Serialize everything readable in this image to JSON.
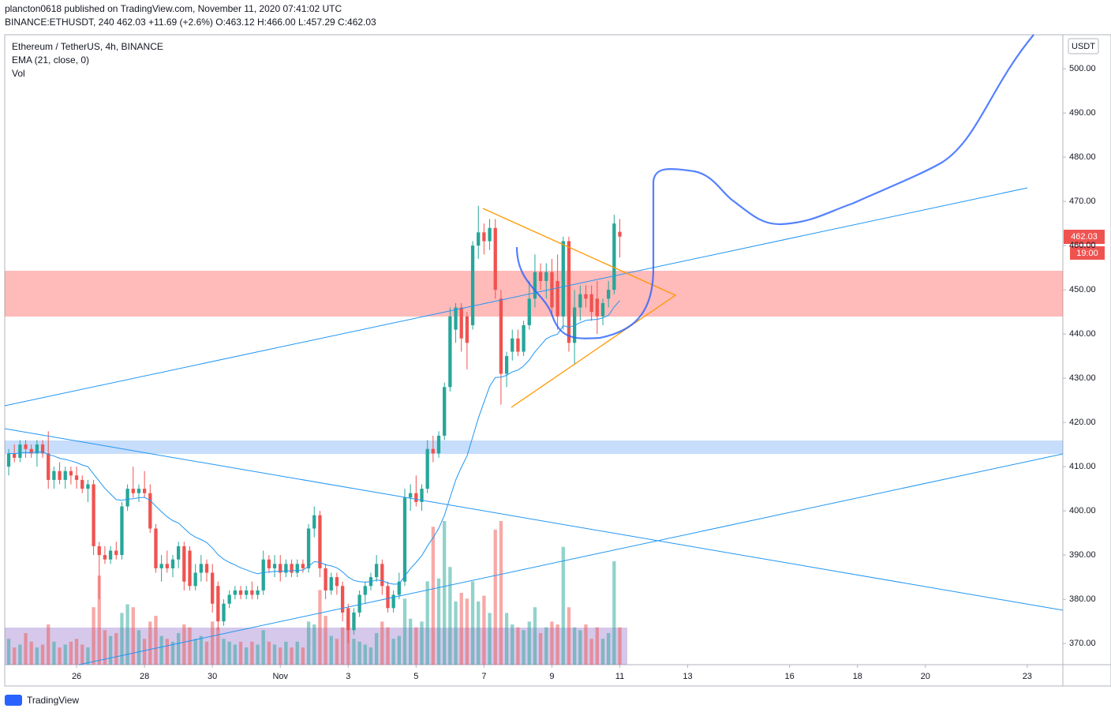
{
  "header": {
    "publisher": "plancton0618 published on TradingView.com, November 11, 2020 07:41:02 UTC",
    "symbol_line": "BINANCE:ETHUSDT, 240 462.03 +11.69 (+2.6%) O:463.12 H:466.00 L:457.29 C:462.03"
  },
  "footer": {
    "brand": "TradingView"
  },
  "chart_data": {
    "type": "candlestick",
    "title": "Ethereum / TetherUS, 4h, BINANCE",
    "indicators": [
      "EMA (21, close, 0)",
      "Vol"
    ],
    "currency": "USDT",
    "countdown": "19:00",
    "up_color": "#26a69a",
    "down_color": "#ef5350",
    "ema_color": "#2196f3",
    "xlim": [
      -0.7,
      186.3
    ],
    "xticks": [
      {
        "value": 12,
        "label": "26"
      },
      {
        "value": 24,
        "label": "28"
      },
      {
        "value": 36,
        "label": "30"
      },
      {
        "value": 48,
        "label": "Nov"
      },
      {
        "value": 60,
        "label": "3"
      },
      {
        "value": 72,
        "label": "5"
      },
      {
        "value": 84,
        "label": "7"
      },
      {
        "value": 96,
        "label": "9"
      },
      {
        "value": 108,
        "label": "11"
      },
      {
        "value": 120,
        "label": "13"
      },
      {
        "value": 138,
        "label": "16"
      },
      {
        "value": 150,
        "label": "18"
      },
      {
        "value": 162,
        "label": "20"
      },
      {
        "value": 180,
        "label": "23"
      }
    ],
    "ylim": [
      365.2,
      507.7
    ],
    "yticks": [
      {
        "value": 370,
        "label": "370.00"
      },
      {
        "value": 380,
        "label": "380.00"
      },
      {
        "value": 390,
        "label": "390.00"
      },
      {
        "value": 400,
        "label": "400.00"
      },
      {
        "value": 410,
        "label": "410.00"
      },
      {
        "value": 420,
        "label": "420.00"
      },
      {
        "value": 430,
        "label": "430.00"
      },
      {
        "value": 440,
        "label": "440.00"
      },
      {
        "value": 450,
        "label": "450.00"
      },
      {
        "value": 460,
        "label": "460.00"
      },
      {
        "value": 470,
        "label": "470.00"
      },
      {
        "value": 480,
        "label": "480.00"
      },
      {
        "value": 490,
        "label": "490.00"
      },
      {
        "value": 500,
        "label": "500.00"
      }
    ],
    "grid": false,
    "ohlc": [
      [
        410,
        414,
        408,
        413
      ],
      [
        413,
        415,
        411,
        412
      ],
      [
        412,
        416,
        411,
        415
      ],
      [
        415,
        416,
        412,
        414
      ],
      [
        414,
        415,
        412,
        413
      ],
      [
        413,
        416,
        410,
        415
      ],
      [
        415,
        416,
        412,
        413
      ],
      [
        413,
        418,
        405,
        407
      ],
      [
        407,
        410,
        405,
        409
      ],
      [
        409,
        411,
        406,
        407
      ],
      [
        407,
        410,
        405,
        409
      ],
      [
        409,
        410,
        406,
        408
      ],
      [
        408,
        410,
        405,
        407
      ],
      [
        407,
        408,
        404,
        405
      ],
      [
        405,
        407,
        402,
        406
      ],
      [
        406,
        407,
        390,
        392
      ],
      [
        392,
        393,
        380,
        390
      ],
      [
        390,
        392,
        388,
        389
      ],
      [
        389,
        392,
        388,
        391
      ],
      [
        391,
        393,
        389,
        390
      ],
      [
        390,
        402,
        389,
        401
      ],
      [
        401,
        406,
        400,
        405
      ],
      [
        405,
        410,
        403,
        404
      ],
      [
        404,
        406,
        402,
        405
      ],
      [
        405,
        409,
        403,
        404
      ],
      [
        404,
        406,
        395,
        396
      ],
      [
        396,
        397,
        386,
        387
      ],
      [
        387,
        390,
        384,
        388
      ],
      [
        388,
        391,
        386,
        387
      ],
      [
        387,
        390,
        385,
        389
      ],
      [
        389,
        393,
        387,
        392
      ],
      [
        392,
        393,
        382,
        384
      ],
      [
        391,
        392,
        382,
        383
      ],
      [
        383,
        388,
        382,
        386
      ],
      [
        386,
        390,
        384,
        388
      ],
      [
        388,
        389,
        384,
        386
      ],
      [
        386,
        388,
        377,
        379
      ],
      [
        383,
        384,
        373,
        375
      ],
      [
        375,
        380,
        374,
        379
      ],
      [
        379,
        382,
        378,
        381
      ],
      [
        381,
        383,
        380,
        382
      ],
      [
        382,
        383,
        380,
        381
      ],
      [
        381,
        383,
        380,
        382
      ],
      [
        382,
        384,
        380,
        381
      ],
      [
        381,
        383,
        380,
        382
      ],
      [
        382,
        391,
        381,
        389
      ],
      [
        389,
        390,
        386,
        387
      ],
      [
        387,
        390,
        385,
        388
      ],
      [
        388,
        390,
        384,
        386
      ],
      [
        386,
        389,
        385,
        388
      ],
      [
        388,
        389,
        385,
        386
      ],
      [
        386,
        389,
        385,
        388
      ],
      [
        388,
        389,
        386,
        387
      ],
      [
        387,
        397,
        386,
        396
      ],
      [
        396,
        401,
        394,
        399
      ],
      [
        399,
        400,
        385,
        387
      ],
      [
        387,
        388,
        380,
        382
      ],
      [
        382,
        386,
        381,
        385
      ],
      [
        385,
        386,
        381,
        383
      ],
      [
        383,
        384,
        375,
        377
      ],
      [
        378,
        379,
        370,
        373
      ],
      [
        373,
        378,
        372,
        377
      ],
      [
        377,
        382,
        376,
        381
      ],
      [
        381,
        384,
        379,
        383
      ],
      [
        383,
        386,
        382,
        385
      ],
      [
        385,
        390,
        384,
        388
      ],
      [
        388,
        389,
        381,
        383
      ],
      [
        383,
        384,
        377,
        378
      ],
      [
        378,
        382,
        377,
        381
      ],
      [
        381,
        386,
        380,
        384
      ],
      [
        384,
        405,
        383,
        403
      ],
      [
        403,
        406,
        400,
        404
      ],
      [
        404,
        408,
        401,
        402
      ],
      [
        402,
        406,
        400,
        405
      ],
      [
        405,
        416,
        404,
        414
      ],
      [
        414,
        417,
        411,
        413
      ],
      [
        413,
        418,
        412,
        417
      ],
      [
        417,
        429,
        416,
        428
      ],
      [
        428,
        446,
        427,
        444
      ],
      [
        441,
        447,
        438,
        446
      ],
      [
        446,
        447,
        436,
        439
      ],
      [
        444,
        445,
        432,
        438
      ],
      [
        442,
        461,
        441,
        460
      ],
      [
        460,
        469,
        457,
        463
      ],
      [
        463,
        465,
        458,
        461
      ],
      [
        461,
        466,
        459,
        464
      ],
      [
        464,
        466,
        448,
        450
      ],
      [
        448,
        450,
        424,
        431
      ],
      [
        431,
        436,
        428,
        435
      ],
      [
        436,
        441,
        434,
        439
      ],
      [
        439,
        441,
        435,
        436
      ],
      [
        436,
        443,
        435,
        442
      ],
      [
        442,
        452,
        441,
        448
      ],
      [
        448,
        458,
        446,
        454
      ],
      [
        454,
        456,
        450,
        452
      ],
      [
        452,
        456,
        448,
        454
      ],
      [
        454,
        457,
        444,
        446
      ],
      [
        452,
        458,
        441,
        444
      ],
      [
        444,
        462,
        441,
        461
      ],
      [
        461,
        462,
        436,
        438
      ],
      [
        438,
        450,
        433,
        446
      ],
      [
        446,
        451,
        443,
        449
      ],
      [
        449,
        451,
        446,
        448
      ],
      [
        449,
        451,
        443,
        445
      ],
      [
        448,
        452,
        440,
        444
      ],
      [
        444,
        448,
        442,
        447
      ],
      [
        448,
        452,
        446,
        450
      ],
      [
        450,
        467,
        449,
        465
      ],
      [
        463.12,
        466,
        457.29,
        462.03
      ]
    ],
    "volume_lim": [
      0,
      100
    ],
    "volume": [
      18,
      12,
      14,
      22,
      16,
      12,
      14,
      28,
      16,
      12,
      14,
      16,
      18,
      14,
      12,
      40,
      62,
      24,
      20,
      22,
      36,
      42,
      40,
      24,
      18,
      30,
      34,
      20,
      18,
      16,
      22,
      28,
      26,
      18,
      20,
      16,
      30,
      26,
      18,
      16,
      14,
      16,
      12,
      16,
      14,
      24,
      16,
      14,
      12,
      16,
      12,
      16,
      12,
      30,
      28,
      52,
      34,
      20,
      18,
      26,
      32,
      18,
      16,
      14,
      12,
      22,
      30,
      26,
      18,
      20,
      46,
      32,
      26,
      30,
      58,
      96,
      60,
      100,
      68,
      44,
      50,
      46,
      58,
      44,
      48,
      36,
      94,
      100,
      36,
      28,
      26,
      24,
      30,
      40,
      22,
      26,
      30,
      28,
      82,
      40,
      26,
      24,
      28,
      18,
      26,
      18,
      22,
      72,
      26
    ]
  }
}
